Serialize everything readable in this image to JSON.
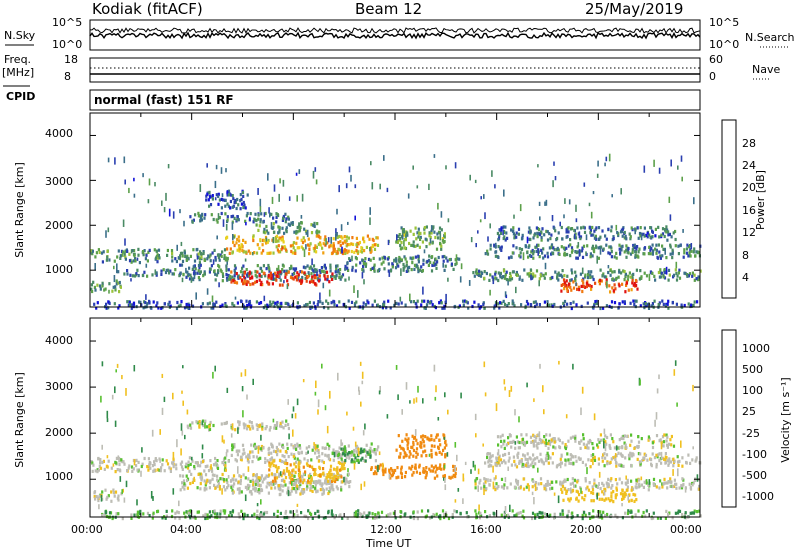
{
  "header": {
    "station": "Kodiak (fitACF)",
    "beam": "Beam 12",
    "date": "25/May/2019"
  },
  "top_panels": {
    "nsky_label": "N.Sky",
    "nsky_ticks": [
      "10^5",
      "10^0"
    ],
    "nsearch_label": "N.Search",
    "nsearch_ticks": [
      "10^5",
      "10^0"
    ],
    "freq_label_1": "Freq.",
    "freq_label_2": "[MHz]",
    "freq_ticks": [
      "18",
      "8"
    ],
    "nave_label": "Nave",
    "nave_ticks": [
      "60",
      "0"
    ],
    "cpid_label": "CPID",
    "mode_text": "normal (fast) 151 RF"
  },
  "colorbars": {
    "power": {
      "label": "Power [dB]",
      "ticks": [
        "28",
        "24",
        "20",
        "16",
        "12",
        "8",
        "4"
      ],
      "colors": [
        "#1212d8",
        "#2a3fb0",
        "#3b6f8a",
        "#4a8a64",
        "#5ca04a",
        "#9ac23a",
        "#e8d020",
        "#f0a010",
        "#f07a10",
        "#e84a10",
        "#e01010"
      ]
    },
    "velocity": {
      "label": "Velocity [m s⁻¹]",
      "ticks": [
        "1000",
        "500",
        "100",
        "25",
        "-25",
        "-100",
        "-500",
        "-1000"
      ],
      "colors": [
        "#1a2ac8",
        "#2060b8",
        "#2f8a4a",
        "#58c030",
        "#bdbdb5",
        "#f0c020",
        "#f08a10",
        "#f05010",
        "#e01010"
      ]
    }
  },
  "chart_data": [
    {
      "type": "heatmap",
      "title": "Beam 12",
      "xlabel": "Time UT",
      "ylabel": "Slant Range [km]",
      "x_ticks": [
        "00:00",
        "04:00",
        "08:00",
        "12:00",
        "16:00",
        "20:00",
        "00:00"
      ],
      "y_ticks": [
        "4000",
        "3000",
        "2000",
        "1000"
      ],
      "ylim": [
        180,
        4500
      ],
      "xlim_hours": [
        0,
        24
      ],
      "colorbar": "Power [dB]",
      "regions": [
        {
          "t0": 0.0,
          "t1": 5.4,
          "r0": 1200,
          "r1": 1500,
          "value": 10
        },
        {
          "t0": 0.0,
          "t1": 1.2,
          "r0": 550,
          "r1": 800,
          "value": 12
        },
        {
          "t0": 1.0,
          "t1": 3.5,
          "r0": 900,
          "r1": 1050,
          "value": 8
        },
        {
          "t0": 3.5,
          "t1": 10.2,
          "r0": 800,
          "r1": 1150,
          "value": 9
        },
        {
          "t0": 5.5,
          "t1": 9.5,
          "r0": 700,
          "r1": 1000,
          "value": 28
        },
        {
          "t0": 3.8,
          "t1": 7.8,
          "r0": 2100,
          "r1": 2300,
          "value": 9
        },
        {
          "t0": 4.5,
          "t1": 6.2,
          "r0": 2400,
          "r1": 2800,
          "value": 6
        },
        {
          "t0": 5.3,
          "t1": 11.3,
          "r0": 1400,
          "r1": 1800,
          "value": 20
        },
        {
          "t0": 6.5,
          "t1": 9.0,
          "r0": 1850,
          "r1": 2100,
          "value": 11
        },
        {
          "t0": 10.0,
          "t1": 14.5,
          "r0": 1000,
          "r1": 1350,
          "value": 9
        },
        {
          "t0": 12.0,
          "t1": 14.0,
          "r0": 1500,
          "r1": 2000,
          "value": 12
        },
        {
          "t0": 15.5,
          "t1": 24.0,
          "r0": 1300,
          "r1": 1600,
          "value": 9
        },
        {
          "t0": 16.0,
          "t1": 23.0,
          "r0": 1700,
          "r1": 2000,
          "value": 8
        },
        {
          "t0": 15.0,
          "t1": 24.0,
          "r0": 800,
          "r1": 1050,
          "value": 10
        },
        {
          "t0": 18.5,
          "t1": 21.5,
          "r0": 550,
          "r1": 820,
          "value": 26
        },
        {
          "t0": 0.0,
          "t1": 24.0,
          "r0": 180,
          "r1": 350,
          "value": 6
        }
      ]
    },
    {
      "type": "heatmap",
      "title": "Beam 12",
      "xlabel": "Time UT",
      "ylabel": "Slant Range [km]",
      "x_ticks": [
        "00:00",
        "04:00",
        "08:00",
        "12:00",
        "16:00",
        "20:00",
        "00:00"
      ],
      "y_ticks": [
        "4000",
        "3000",
        "2000",
        "1000"
      ],
      "ylim": [
        180,
        4500
      ],
      "xlim_hours": [
        0,
        24
      ],
      "colorbar": "Velocity [m s⁻¹]",
      "regions": [
        {
          "t0": 0.0,
          "t1": 5.4,
          "r0": 1200,
          "r1": 1500,
          "value": 0
        },
        {
          "t0": 0.0,
          "t1": 1.2,
          "r0": 550,
          "r1": 800,
          "value": 0
        },
        {
          "t0": 3.5,
          "t1": 10.2,
          "r0": 800,
          "r1": 1150,
          "value": 0
        },
        {
          "t0": 5.5,
          "t1": 9.5,
          "r0": 700,
          "r1": 1000,
          "value": 0
        },
        {
          "t0": 3.8,
          "t1": 7.8,
          "r0": 2100,
          "r1": 2300,
          "value": 0
        },
        {
          "t0": 5.3,
          "t1": 11.3,
          "r0": 1400,
          "r1": 1800,
          "value": 0
        },
        {
          "t0": 7.0,
          "t1": 10.0,
          "r0": 950,
          "r1": 1400,
          "value": -80
        },
        {
          "t0": 9.5,
          "t1": 11.0,
          "r0": 1400,
          "r1": 1700,
          "value": 60
        },
        {
          "t0": 11.0,
          "t1": 14.5,
          "r0": 1050,
          "r1": 1350,
          "value": -150
        },
        {
          "t0": 12.0,
          "t1": 14.0,
          "r0": 1500,
          "r1": 2000,
          "value": -300
        },
        {
          "t0": 15.5,
          "t1": 24.0,
          "r0": 1300,
          "r1": 1600,
          "value": 0
        },
        {
          "t0": 16.0,
          "t1": 23.0,
          "r0": 1700,
          "r1": 2000,
          "value": 0
        },
        {
          "t0": 15.0,
          "t1": 24.0,
          "r0": 800,
          "r1": 1050,
          "value": 0
        },
        {
          "t0": 18.5,
          "t1": 21.5,
          "r0": 550,
          "r1": 820,
          "value": -60
        },
        {
          "t0": 0.0,
          "t1": 24.0,
          "r0": 180,
          "r1": 350,
          "value": 40
        }
      ]
    }
  ]
}
